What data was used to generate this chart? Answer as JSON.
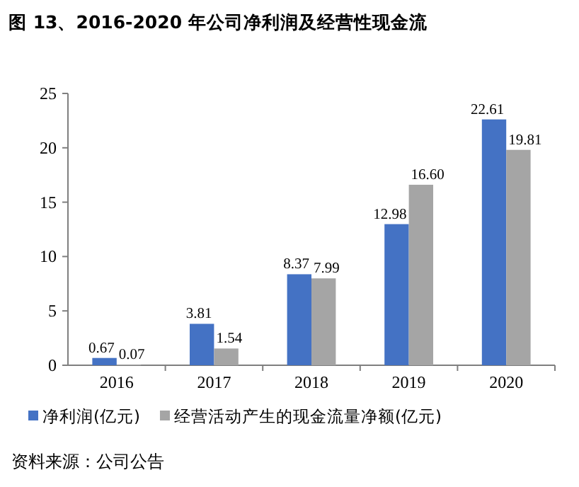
{
  "chart_data": {
    "type": "bar",
    "title": "图 13、2016-2020 年公司净利润及经营性现金流",
    "categories": [
      "2016",
      "2017",
      "2018",
      "2019",
      "2020"
    ],
    "series": [
      {
        "name": "净利润(亿元)",
        "color": "#4472c4",
        "values": [
          0.67,
          3.81,
          8.37,
          12.98,
          22.61
        ],
        "value_labels": [
          "0.67",
          "3.81",
          "8.37",
          "12.98",
          "22.61"
        ]
      },
      {
        "name": "经营活动产生的现金流量净额(亿元)",
        "color": "#a5a5a5",
        "values": [
          0.07,
          1.54,
          7.99,
          16.6,
          19.81
        ],
        "value_labels": [
          "0.07",
          "1.54",
          "7.99",
          "16.60",
          "19.81"
        ]
      }
    ],
    "ylim": [
      0,
      25
    ],
    "yticks": [
      0,
      5,
      10,
      15,
      20,
      25
    ],
    "grid": false,
    "legend": "bottom",
    "annotations": [
      "资料来源：公司公告"
    ]
  }
}
